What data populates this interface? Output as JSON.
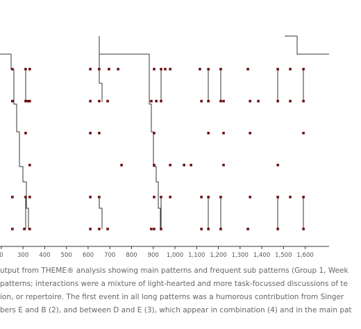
{
  "chart_data": {
    "type": "scatter",
    "xlim": [
      194,
      1710
    ],
    "ylim": [
      0.9,
      6.5
    ],
    "xticks": [
      {
        "value": 200,
        "label": "0"
      },
      300,
      400,
      500,
      600,
      700,
      800,
      900,
      {
        "value": 1000,
        "label": "1,000"
      },
      {
        "value": 1100,
        "label": "1,100"
      },
      {
        "value": 1200,
        "label": "1,200"
      },
      {
        "value": 1300,
        "label": "1,300"
      },
      {
        "value": 1400,
        "label": "1,400"
      },
      {
        "value": 1500,
        "label": "1,500"
      },
      {
        "value": 1600,
        "label": "1,600"
      }
    ],
    "series": [
      {
        "color": "#6b1010",
        "x": [
          251,
          312,
          331,
          610,
          651,
          696,
          738,
          904,
          936,
          955,
          978,
          1115,
          1154,
          1211,
          1336,
          1474,
          1531,
          1592,
          251,
          312,
          322,
          331,
          610,
          651,
          690,
          891,
          914,
          936,
          1122,
          1154,
          1211,
          1224,
          1346,
          1384,
          1474,
          1531,
          1592,
          312,
          610,
          651,
          904,
          1154,
          1224,
          1346,
          1592,
          331,
          754,
          904,
          978,
          1042,
          1074,
          1224,
          1474,
          251,
          312,
          331,
          610,
          651,
          904,
          936,
          978,
          1122,
          1154,
          1211,
          1346,
          1474,
          1531,
          1592,
          251,
          306,
          331,
          610,
          651,
          690,
          891,
          904,
          936,
          1122,
          1154,
          1211,
          1336,
          1474,
          1592
        ],
        "values": [
          1,
          1,
          1,
          1,
          1,
          1,
          1,
          1,
          1,
          1,
          1,
          1,
          1,
          1,
          1,
          1,
          1,
          1,
          2,
          2,
          2,
          2,
          2,
          2,
          2,
          2,
          2,
          2,
          2,
          2,
          2,
          2,
          2,
          2,
          2,
          2,
          2,
          3,
          3,
          3,
          3,
          3,
          3,
          3,
          3,
          4,
          4,
          4,
          4,
          4,
          4,
          4,
          4,
          5,
          5,
          5,
          5,
          5,
          5,
          5,
          5,
          5,
          5,
          5,
          5,
          5,
          5,
          5,
          6,
          6,
          6,
          6,
          6,
          6,
          6,
          6,
          6,
          6,
          6,
          6,
          6,
          6,
          6
        ]
      }
    ],
    "caption": [
      "utput from THEME® analysis showing main patterns and frequent sub patterns (Group 1, Week",
      "patterns; interactions were a mixture of light-hearted and more task-focussed discussions of te",
      "ion, or repertoire. The first event in all long patterns was a humorous contribution from Singer",
      "bers E and B (2), and between D and E (3), which appear in combination (4) and in the main pat"
    ]
  }
}
